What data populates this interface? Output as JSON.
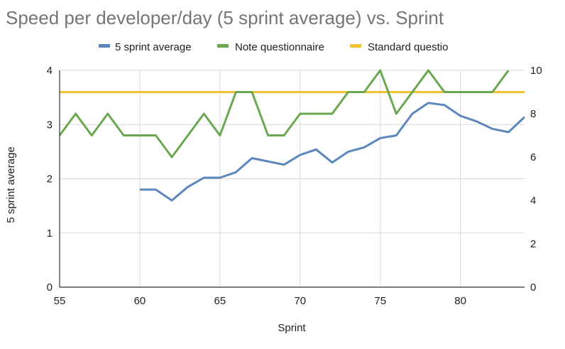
{
  "chart_data": {
    "type": "line",
    "title": "Speed per developer/day (5 sprint average) vs. Sprint",
    "xlabel": "Sprint",
    "ylabel": "5 sprint average",
    "y2label": "",
    "xlim": [
      55,
      84
    ],
    "ylim": [
      0,
      4
    ],
    "y2lim": [
      0,
      10
    ],
    "x_ticks": [
      "55",
      "60",
      "65",
      "70",
      "75",
      "80"
    ],
    "y_ticks": [
      "0",
      "1",
      "2",
      "3",
      "4"
    ],
    "y2_ticks": [
      "0",
      "2",
      "4",
      "6",
      "8",
      "10"
    ],
    "legend_position": "top",
    "series": [
      {
        "name": "5 sprint average",
        "color": "#5b87bd",
        "axis": "left",
        "x": [
          60,
          61,
          62,
          63,
          64,
          65,
          66,
          67,
          68,
          69,
          70,
          71,
          72,
          73,
          74,
          75,
          76,
          77,
          78,
          79,
          80,
          81,
          82,
          83,
          84
        ],
        "values": [
          1.8,
          1.8,
          1.6,
          1.85,
          2.02,
          2.02,
          2.12,
          2.38,
          2.32,
          2.26,
          2.44,
          2.54,
          2.3,
          2.5,
          2.58,
          2.75,
          2.8,
          3.2,
          3.4,
          3.36,
          3.16,
          3.06,
          2.92,
          2.86,
          3.14
        ]
      },
      {
        "name": "Note questionnaire",
        "color": "#6aa84f",
        "axis": "right",
        "x": [
          55,
          56,
          57,
          58,
          59,
          60,
          61,
          62,
          63,
          64,
          65,
          66,
          67,
          68,
          69,
          70,
          71,
          72,
          73,
          74,
          75,
          76,
          77,
          78,
          79,
          80,
          81,
          82,
          83
        ],
        "values": [
          7,
          8,
          7,
          8,
          7,
          7,
          7,
          6,
          7,
          8,
          7,
          9,
          9,
          7,
          7,
          8,
          8,
          8,
          9,
          9,
          10,
          8,
          9,
          10,
          9,
          9,
          9,
          9,
          10
        ]
      },
      {
        "name": "Standard questio",
        "color": "#f1c232",
        "axis": "right",
        "x": [
          55,
          84
        ],
        "values": [
          9,
          9
        ]
      }
    ]
  }
}
